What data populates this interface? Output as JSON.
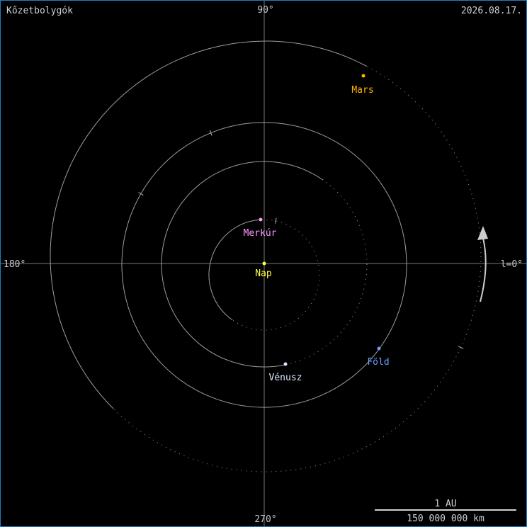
{
  "title": "Kőzetbolygók",
  "date": "2026.08.17.",
  "axes": {
    "top": "90°",
    "bottom": "270°",
    "left": "180°",
    "right": "l=0°"
  },
  "scale": {
    "top": "1 AU",
    "bottom": "150 000 000 km"
  },
  "bodies": {
    "sun": {
      "label": "Nap",
      "color": "#ffff40"
    },
    "mercury": {
      "label": "Merkúr",
      "color": "#ff99ff"
    },
    "venus": {
      "label": "Vénusz",
      "color": "#dde6ff"
    },
    "earth": {
      "label": "Föld",
      "color": "#6f9cff"
    },
    "mars": {
      "label": "Mars",
      "color": "#ffb400"
    }
  },
  "motion_direction_icon": "counterclockwise-arrow-icon"
}
